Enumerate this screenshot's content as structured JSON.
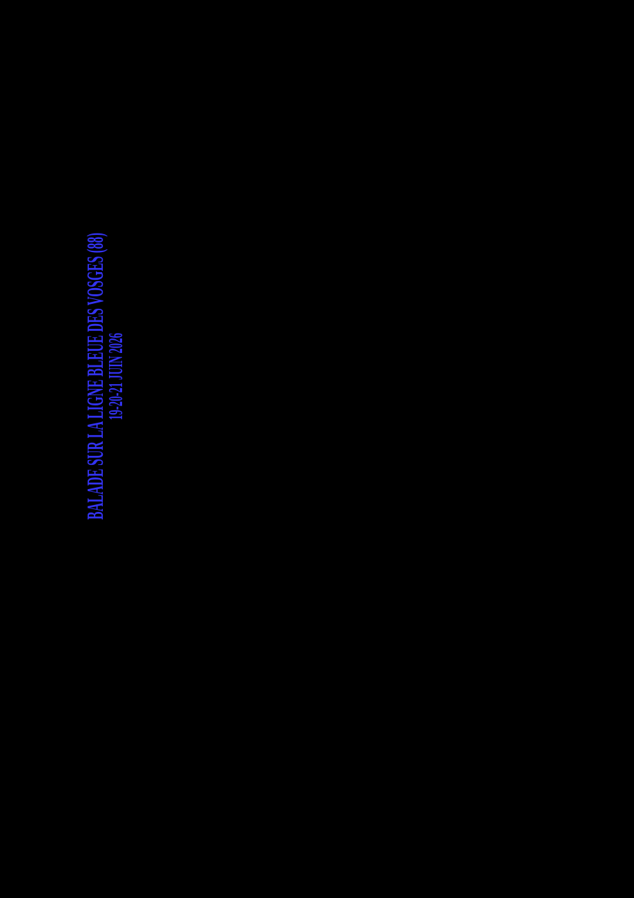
{
  "page": {
    "background_color": "#000000",
    "text_color": "#3333f2"
  },
  "poster": {
    "title": "BALADE SUR LA LIGNE BLEUE DES VOSGES (88)",
    "date": "19-20-21 JUIN 2026"
  }
}
